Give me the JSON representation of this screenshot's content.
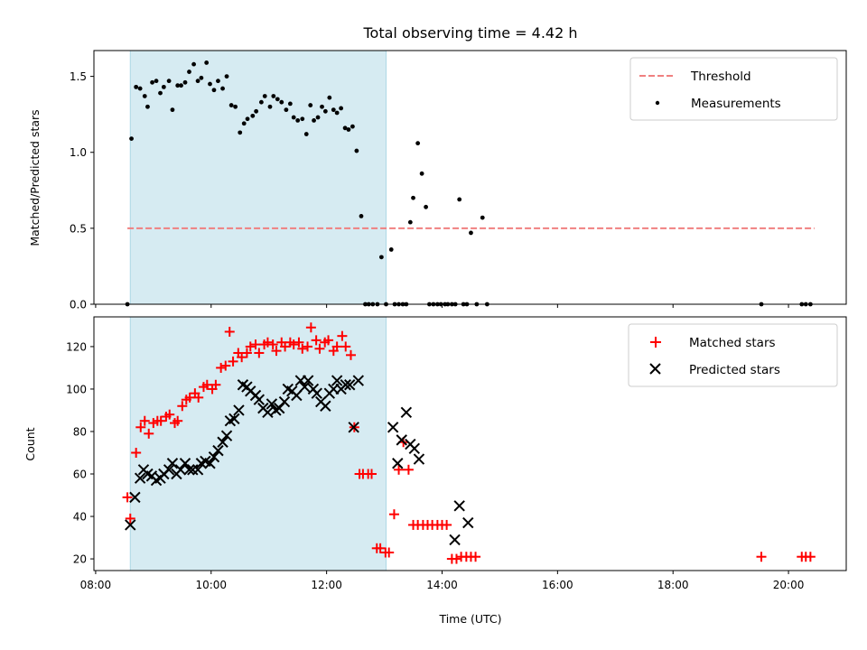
{
  "chart_data": [
    {
      "type": "scatter",
      "title": "Total observing time = 4.42 h",
      "xlabel": "",
      "ylabel": "Matched/Predicted stars",
      "xlim": [
        7.97,
        21.0
      ],
      "ylim": [
        0.0,
        1.67
      ],
      "yticks": [
        0.0,
        0.5,
        1.0,
        1.5
      ],
      "yticklabels": [
        "0.0",
        "0.5",
        "1.0",
        "1.5"
      ],
      "grid": false,
      "legend": "top-right",
      "shaded_span": {
        "x": [
          8.6,
          13.03
        ],
        "color": "#add8e6"
      },
      "threshold": {
        "name": "Threshold",
        "value": 0.5,
        "x": [
          8.55,
          20.45
        ],
        "color": "#f08080",
        "style": "dashed"
      },
      "series": [
        {
          "name": "Measurements",
          "color": "#000000",
          "marker": "dot",
          "points": [
            [
              8.55,
              0.0
            ],
            [
              8.62,
              1.09
            ],
            [
              8.7,
              1.43
            ],
            [
              8.77,
              1.42
            ],
            [
              8.85,
              1.37
            ],
            [
              8.9,
              1.3
            ],
            [
              8.98,
              1.46
            ],
            [
              9.05,
              1.47
            ],
            [
              9.12,
              1.39
            ],
            [
              9.18,
              1.43
            ],
            [
              9.27,
              1.47
            ],
            [
              9.33,
              1.28
            ],
            [
              9.42,
              1.44
            ],
            [
              9.48,
              1.44
            ],
            [
              9.55,
              1.46
            ],
            [
              9.62,
              1.53
            ],
            [
              9.7,
              1.58
            ],
            [
              9.77,
              1.47
            ],
            [
              9.83,
              1.49
            ],
            [
              9.92,
              1.59
            ],
            [
              9.98,
              1.45
            ],
            [
              10.05,
              1.41
            ],
            [
              10.12,
              1.47
            ],
            [
              10.2,
              1.42
            ],
            [
              10.27,
              1.5
            ],
            [
              10.35,
              1.31
            ],
            [
              10.42,
              1.3
            ],
            [
              10.5,
              1.13
            ],
            [
              10.57,
              1.19
            ],
            [
              10.63,
              1.22
            ],
            [
              10.72,
              1.24
            ],
            [
              10.78,
              1.27
            ],
            [
              10.87,
              1.33
            ],
            [
              10.93,
              1.37
            ],
            [
              11.02,
              1.3
            ],
            [
              11.08,
              1.37
            ],
            [
              11.15,
              1.35
            ],
            [
              11.22,
              1.33
            ],
            [
              11.3,
              1.28
            ],
            [
              11.37,
              1.32
            ],
            [
              11.43,
              1.23
            ],
            [
              11.5,
              1.21
            ],
            [
              11.58,
              1.22
            ],
            [
              11.65,
              1.12
            ],
            [
              11.72,
              1.31
            ],
            [
              11.78,
              1.21
            ],
            [
              11.85,
              1.23
            ],
            [
              11.92,
              1.3
            ],
            [
              11.98,
              1.27
            ],
            [
              12.05,
              1.36
            ],
            [
              12.12,
              1.28
            ],
            [
              12.18,
              1.26
            ],
            [
              12.25,
              1.29
            ],
            [
              12.32,
              1.16
            ],
            [
              12.38,
              1.15
            ],
            [
              12.45,
              1.17
            ],
            [
              12.52,
              1.01
            ],
            [
              12.6,
              0.58
            ],
            [
              12.67,
              0.0
            ],
            [
              12.73,
              0.0
            ],
            [
              12.8,
              0.0
            ],
            [
              12.88,
              0.0
            ],
            [
              12.95,
              0.31
            ],
            [
              13.03,
              0.0
            ],
            [
              13.12,
              0.36
            ],
            [
              13.18,
              0.0
            ],
            [
              13.25,
              0.0
            ],
            [
              13.32,
              0.0
            ],
            [
              13.38,
              0.0
            ],
            [
              13.45,
              0.54
            ],
            [
              13.5,
              0.7
            ],
            [
              13.58,
              1.06
            ],
            [
              13.65,
              0.86
            ],
            [
              13.72,
              0.64
            ],
            [
              13.78,
              0.0
            ],
            [
              13.85,
              0.0
            ],
            [
              13.92,
              0.0
            ],
            [
              13.98,
              0.0
            ],
            [
              14.05,
              0.0
            ],
            [
              14.1,
              0.0
            ],
            [
              14.17,
              0.0
            ],
            [
              14.23,
              0.0
            ],
            [
              14.3,
              0.69
            ],
            [
              14.37,
              0.0
            ],
            [
              14.43,
              0.0
            ],
            [
              14.5,
              0.47
            ],
            [
              14.6,
              0.0
            ],
            [
              14.7,
              0.57
            ],
            [
              14.78,
              0.0
            ],
            [
              19.53,
              0.0
            ],
            [
              20.23,
              0.0
            ],
            [
              20.3,
              0.0
            ],
            [
              20.38,
              0.0
            ]
          ]
        }
      ]
    },
    {
      "type": "scatter",
      "title": "",
      "xlabel": "Time (UTC)",
      "ylabel": "Count",
      "xlim": [
        7.97,
        21.0
      ],
      "ylim": [
        14.5,
        134
      ],
      "xticks": [
        8,
        10,
        12,
        14,
        16,
        18,
        20
      ],
      "xticklabels": [
        "08:00",
        "10:00",
        "12:00",
        "14:00",
        "16:00",
        "18:00",
        "20:00"
      ],
      "yticks": [
        20,
        40,
        60,
        80,
        100,
        120
      ],
      "yticklabels": [
        "20",
        "40",
        "60",
        "80",
        "100",
        "120"
      ],
      "grid": false,
      "legend": "top-right",
      "shaded_span": {
        "x": [
          8.6,
          13.03
        ],
        "color": "#add8e6"
      },
      "series": [
        {
          "name": "Matched stars",
          "color": "#ff0000",
          "marker": "plus",
          "points": [
            [
              8.55,
              49
            ],
            [
              8.6,
              39
            ],
            [
              8.7,
              70
            ],
            [
              8.78,
              82
            ],
            [
              8.85,
              85
            ],
            [
              8.92,
              79
            ],
            [
              9.0,
              84
            ],
            [
              9.07,
              85
            ],
            [
              9.13,
              85
            ],
            [
              9.22,
              87
            ],
            [
              9.28,
              88
            ],
            [
              9.37,
              84
            ],
            [
              9.42,
              85
            ],
            [
              9.5,
              92
            ],
            [
              9.57,
              95
            ],
            [
              9.63,
              96
            ],
            [
              9.72,
              98
            ],
            [
              9.78,
              96
            ],
            [
              9.87,
              101
            ],
            [
              9.93,
              102
            ],
            [
              10.02,
              100
            ],
            [
              10.08,
              102
            ],
            [
              10.17,
              110
            ],
            [
              10.25,
              111
            ],
            [
              10.32,
              127
            ],
            [
              10.38,
              113
            ],
            [
              10.47,
              117
            ],
            [
              10.53,
              115
            ],
            [
              10.62,
              117
            ],
            [
              10.68,
              120
            ],
            [
              10.77,
              121
            ],
            [
              10.83,
              117
            ],
            [
              10.92,
              121
            ],
            [
              10.98,
              122
            ],
            [
              11.07,
              121
            ],
            [
              11.13,
              118
            ],
            [
              11.22,
              122
            ],
            [
              11.28,
              120
            ],
            [
              11.37,
              122
            ],
            [
              11.43,
              121
            ],
            [
              11.52,
              122
            ],
            [
              11.58,
              119
            ],
            [
              11.67,
              120
            ],
            [
              11.73,
              129
            ],
            [
              11.82,
              123
            ],
            [
              11.88,
              119
            ],
            [
              11.97,
              122
            ],
            [
              12.03,
              123
            ],
            [
              12.12,
              118
            ],
            [
              12.18,
              120
            ],
            [
              12.27,
              125
            ],
            [
              12.33,
              120
            ],
            [
              12.42,
              116
            ],
            [
              12.48,
              82
            ],
            [
              12.57,
              60
            ],
            [
              12.63,
              60
            ],
            [
              12.72,
              60
            ],
            [
              12.78,
              60
            ],
            [
              12.87,
              25
            ],
            [
              12.93,
              25
            ],
            [
              13.02,
              23
            ],
            [
              13.08,
              23
            ],
            [
              13.17,
              41
            ],
            [
              13.25,
              62
            ],
            [
              13.33,
              75
            ],
            [
              13.42,
              62
            ],
            [
              13.5,
              36
            ],
            [
              13.58,
              36
            ],
            [
              13.67,
              36
            ],
            [
              13.75,
              36
            ],
            [
              13.83,
              36
            ],
            [
              13.92,
              36
            ],
            [
              14.0,
              36
            ],
            [
              14.08,
              36
            ],
            [
              14.17,
              20
            ],
            [
              14.25,
              20
            ],
            [
              14.33,
              21
            ],
            [
              14.42,
              21
            ],
            [
              14.5,
              21
            ],
            [
              14.58,
              21
            ],
            [
              19.53,
              21
            ],
            [
              20.23,
              21
            ],
            [
              20.3,
              21
            ],
            [
              20.38,
              21
            ]
          ]
        },
        {
          "name": "Predicted stars",
          "color": "#000000",
          "marker": "x",
          "points": [
            [
              8.6,
              36
            ],
            [
              8.68,
              49
            ],
            [
              8.77,
              58
            ],
            [
              8.83,
              62
            ],
            [
              8.9,
              60
            ],
            [
              8.97,
              59
            ],
            [
              9.05,
              57
            ],
            [
              9.12,
              58
            ],
            [
              9.18,
              60
            ],
            [
              9.27,
              62
            ],
            [
              9.33,
              65
            ],
            [
              9.4,
              60
            ],
            [
              9.47,
              62
            ],
            [
              9.55,
              65
            ],
            [
              9.62,
              62
            ],
            [
              9.68,
              62
            ],
            [
              9.77,
              62
            ],
            [
              9.83,
              65
            ],
            [
              9.9,
              66
            ],
            [
              9.98,
              65
            ],
            [
              10.05,
              68
            ],
            [
              10.12,
              71
            ],
            [
              10.2,
              75
            ],
            [
              10.27,
              78
            ],
            [
              10.33,
              85
            ],
            [
              10.4,
              86
            ],
            [
              10.48,
              90
            ],
            [
              10.55,
              102
            ],
            [
              10.62,
              101
            ],
            [
              10.68,
              99
            ],
            [
              10.77,
              97
            ],
            [
              10.83,
              95
            ],
            [
              10.9,
              91
            ],
            [
              10.98,
              89
            ],
            [
              11.05,
              93
            ],
            [
              11.12,
              90
            ],
            [
              11.18,
              91
            ],
            [
              11.27,
              94
            ],
            [
              11.33,
              100
            ],
            [
              11.4,
              99
            ],
            [
              11.48,
              97
            ],
            [
              11.55,
              104
            ],
            [
              11.62,
              101
            ],
            [
              11.68,
              104
            ],
            [
              11.77,
              100
            ],
            [
              11.83,
              98
            ],
            [
              11.9,
              94
            ],
            [
              11.98,
              92
            ],
            [
              12.05,
              98
            ],
            [
              12.12,
              100
            ],
            [
              12.18,
              104
            ],
            [
              12.25,
              100
            ],
            [
              12.33,
              102
            ],
            [
              12.4,
              102
            ],
            [
              12.47,
              82
            ],
            [
              12.55,
              104
            ],
            [
              13.15,
              82
            ],
            [
              13.23,
              65
            ],
            [
              13.3,
              76
            ],
            [
              13.38,
              89
            ],
            [
              13.45,
              74
            ],
            [
              13.52,
              72
            ],
            [
              13.6,
              67
            ],
            [
              14.22,
              29
            ],
            [
              14.3,
              45
            ],
            [
              14.45,
              37
            ]
          ]
        }
      ]
    }
  ]
}
